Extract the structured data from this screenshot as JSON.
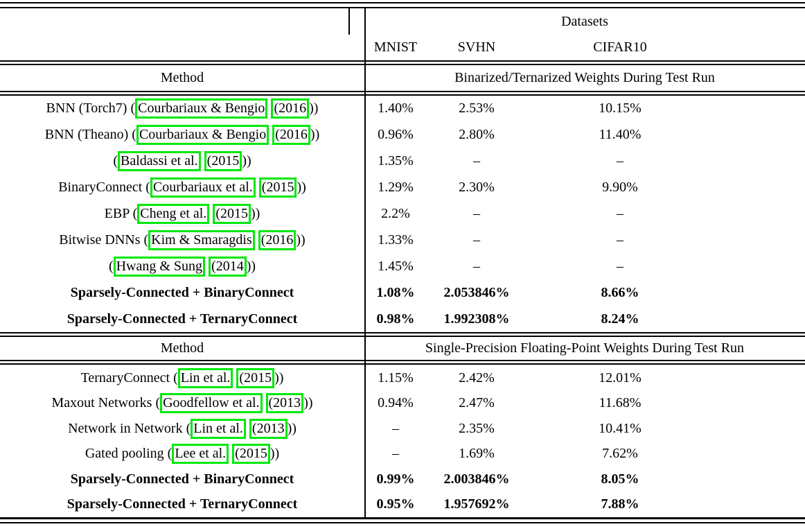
{
  "table": {
    "datasets_header": "Datasets",
    "dataset_columns": [
      "MNIST",
      "SVHN",
      "CIFAR10"
    ],
    "method_header": "Method",
    "missing_value": "–",
    "sections": [
      {
        "header": "Binarized/Ternarized Weights During Test Run",
        "rows": [
          {
            "method_prefix": "BNN (Torch7) (",
            "link_author": "Courbariaux & Bengio",
            "link_year": "(2016",
            "method_suffix": "))",
            "bold": false,
            "values": [
              "1.40%",
              "2.53%",
              "10.15%"
            ]
          },
          {
            "method_prefix": "BNN (Theano) (",
            "link_author": "Courbariaux & Bengio",
            "link_year": "(2016",
            "method_suffix": "))",
            "bold": false,
            "values": [
              "0.96%",
              "2.80%",
              "11.40%"
            ]
          },
          {
            "method_prefix": "(",
            "link_author": "Baldassi et al.",
            "link_year": "(2015",
            "method_suffix": "))",
            "bold": false,
            "values": [
              "1.35%",
              "–",
              "–"
            ]
          },
          {
            "method_prefix": "BinaryConnect (",
            "link_author": "Courbariaux et al.",
            "link_year": "(2015",
            "method_suffix": "))",
            "bold": false,
            "values": [
              "1.29%",
              "2.30%",
              "9.90%"
            ]
          },
          {
            "method_prefix": "EBP (",
            "link_author": "Cheng et al.",
            "link_year": "(2015",
            "method_suffix": "))",
            "bold": false,
            "values": [
              "2.2%",
              "–",
              "–"
            ]
          },
          {
            "method_prefix": "Bitwise DNNs (",
            "link_author": "Kim & Smaragdis",
            "link_year": "(2016",
            "method_suffix": "))",
            "bold": false,
            "values": [
              "1.33%",
              "–",
              "–"
            ]
          },
          {
            "method_prefix": "(",
            "link_author": "Hwang & Sung",
            "link_year": "(2014",
            "method_suffix": "))",
            "bold": false,
            "values": [
              "1.45%",
              "–",
              "–"
            ]
          },
          {
            "method_prefix": "Sparsely-Connected + BinaryConnect",
            "link_author": null,
            "link_year": null,
            "method_suffix": "",
            "bold": true,
            "values": [
              "1.08%",
              "2.053846%",
              "8.66%"
            ]
          },
          {
            "method_prefix": "Sparsely-Connected + TernaryConnect",
            "link_author": null,
            "link_year": null,
            "method_suffix": "",
            "bold": true,
            "values": [
              "0.98%",
              "1.992308%",
              "8.24%"
            ]
          }
        ]
      },
      {
        "header": "Single-Precision Floating-Point Weights During Test Run",
        "rows": [
          {
            "method_prefix": "TernaryConnect (",
            "link_author": "Lin et al.",
            "link_year": "(2015",
            "method_suffix": "))",
            "bold": false,
            "values": [
              "1.15%",
              "2.42%",
              "12.01%"
            ]
          },
          {
            "method_prefix": "Maxout Networks (",
            "link_author": "Goodfellow et al.",
            "link_year": "(2013",
            "method_suffix": "))",
            "bold": false,
            "values": [
              "0.94%",
              "2.47%",
              "11.68%"
            ]
          },
          {
            "method_prefix": "Network in Network (",
            "link_author": "Lin et al.",
            "link_year": "(2013",
            "method_suffix": "))",
            "bold": false,
            "values": [
              "–",
              "2.35%",
              "10.41%"
            ]
          },
          {
            "method_prefix": "Gated pooling (",
            "link_author": "Lee et al.",
            "link_year": "(2015",
            "method_suffix": "))",
            "bold": false,
            "values": [
              "–",
              "1.69%",
              "7.62%"
            ]
          },
          {
            "method_prefix": "Sparsely-Connected + BinaryConnect",
            "link_author": null,
            "link_year": null,
            "method_suffix": "",
            "bold": true,
            "values": [
              "0.99%",
              "2.003846%",
              "8.05%"
            ]
          },
          {
            "method_prefix": "Sparsely-Connected + TernaryConnect",
            "link_author": null,
            "link_year": null,
            "method_suffix": "",
            "bold": true,
            "values": [
              "0.95%",
              "1.957692%",
              "7.88%"
            ]
          }
        ]
      }
    ]
  },
  "colors": {
    "link_box_green": "#00E80C",
    "rule_black": "#000000",
    "background": "#FFFFFF"
  }
}
